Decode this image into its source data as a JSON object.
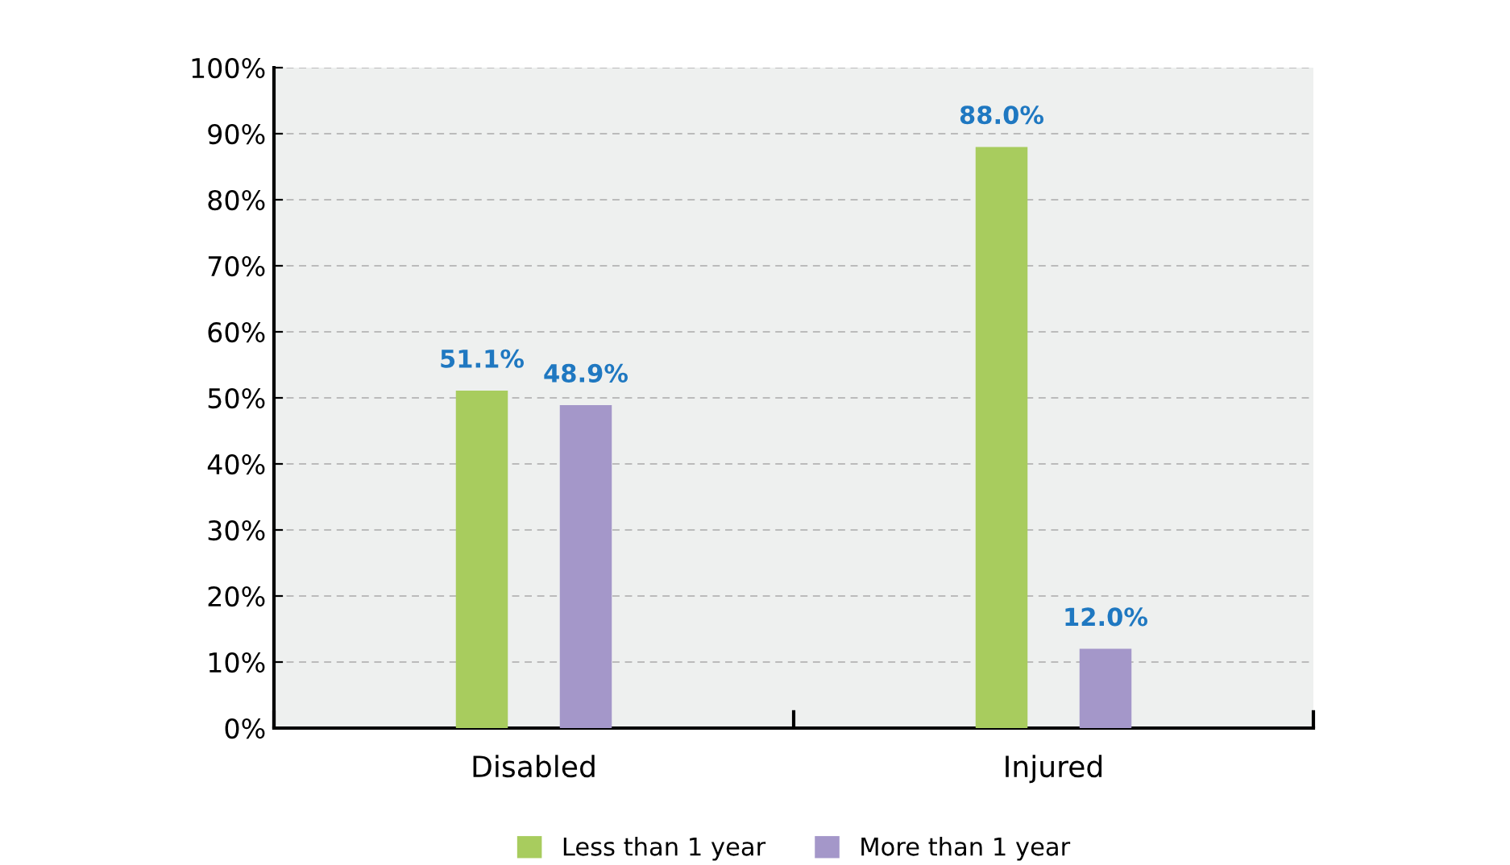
{
  "chart_data": {
    "type": "bar",
    "categories": [
      "Disabled",
      "Injured"
    ],
    "series": [
      {
        "name": "Less than 1 year",
        "color": "#a8cc5e",
        "values": [
          51.1,
          88.0
        ],
        "value_labels": [
          "51.1%",
          "88.0%"
        ]
      },
      {
        "name": "More than 1 year",
        "color": "#a497c9",
        "values": [
          48.9,
          12.0
        ],
        "value_labels": [
          "48.9%",
          "12.0%"
        ]
      }
    ],
    "ylim": [
      0,
      100
    ],
    "yticks": [
      {
        "value": 0,
        "label": "0%"
      },
      {
        "value": 10,
        "label": "10%"
      },
      {
        "value": 20,
        "label": "20%"
      },
      {
        "value": 30,
        "label": "30%"
      },
      {
        "value": 40,
        "label": "40%"
      },
      {
        "value": 50,
        "label": "50%"
      },
      {
        "value": 60,
        "label": "60%"
      },
      {
        "value": 70,
        "label": "70%"
      },
      {
        "value": 80,
        "label": "80%"
      },
      {
        "value": 90,
        "label": "90%"
      },
      {
        "value": 100,
        "label": "100%"
      }
    ],
    "grid": "y",
    "legend": "bottom"
  }
}
